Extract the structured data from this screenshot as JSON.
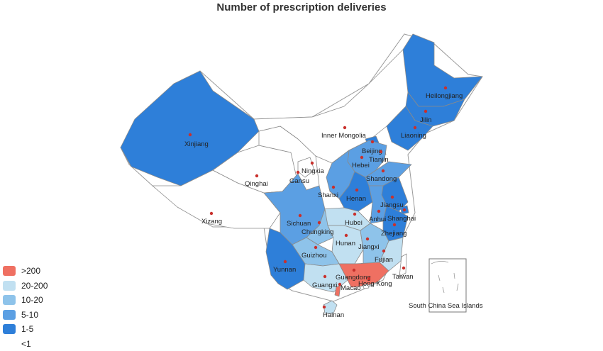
{
  "title": "Number of prescription deliveries",
  "colors": {
    "gt200": "#ef7062",
    "r20_200": "#c1e0f1",
    "r10_20": "#8ec3ea",
    "r5_10": "#5b9fe3",
    "r1_5": "#2e7fd9",
    "lt1": "#ffffff"
  },
  "legend": [
    {
      "label": ">200",
      "color": "#ef7062"
    },
    {
      "label": "20-200",
      "color": "#c1e0f1"
    },
    {
      "label": "10-20",
      "color": "#8ec3ea"
    },
    {
      "label": "5-10",
      "color": "#5b9fe3"
    },
    {
      "label": "1-5",
      "color": "#2e7fd9"
    },
    {
      "label": "<1",
      "color": "#ffffff"
    }
  ],
  "inset_label": "South China Sea Islands",
  "regions": [
    {
      "name": "Xinjiang",
      "category": "1-5"
    },
    {
      "name": "Xizang",
      "category": "<1"
    },
    {
      "name": "Qinghai",
      "category": "<1"
    },
    {
      "name": "Gansu",
      "category": "<1"
    },
    {
      "name": "Inner Mongolia",
      "category": "<1"
    },
    {
      "name": "Ningxia",
      "category": "<1"
    },
    {
      "name": "Heilongjiang",
      "category": "1-5"
    },
    {
      "name": "Jilin",
      "category": "1-5"
    },
    {
      "name": "Liaoning",
      "category": "1-5"
    },
    {
      "name": "Beijing",
      "category": "1-5"
    },
    {
      "name": "Tianjin",
      "category": "5-10"
    },
    {
      "name": "Hebei",
      "category": "5-10"
    },
    {
      "name": "Shanxi",
      "category": "5-10"
    },
    {
      "name": "Shandong",
      "category": "5-10"
    },
    {
      "name": "Henan",
      "category": "1-5"
    },
    {
      "name": "Jiangsu",
      "category": "1-5"
    },
    {
      "name": "Anhui",
      "category": "5-10"
    },
    {
      "name": "Shanghai",
      "category": "1-5"
    },
    {
      "name": "Hubei",
      "category": "20-200"
    },
    {
      "name": "Zhejiang",
      "category": "1-5"
    },
    {
      "name": "Sichuan",
      "category": "5-10"
    },
    {
      "name": "Chungking",
      "category": "10-20"
    },
    {
      "name": "Hunan",
      "category": "20-200"
    },
    {
      "name": "Jiangxi",
      "category": "10-20"
    },
    {
      "name": "Fujian",
      "category": "20-200"
    },
    {
      "name": "Guizhou",
      "category": "10-20"
    },
    {
      "name": "Yunnan",
      "category": "1-5"
    },
    {
      "name": "Guangxi",
      "category": "20-200"
    },
    {
      "name": "Guangdong",
      "category": ">200"
    },
    {
      "name": "Hong Kong",
      "category": "<1"
    },
    {
      "name": "Macao",
      "category": ">200"
    },
    {
      "name": "Hainan",
      "category": "20-200"
    },
    {
      "name": "Taiwan",
      "category": "<1"
    }
  ]
}
